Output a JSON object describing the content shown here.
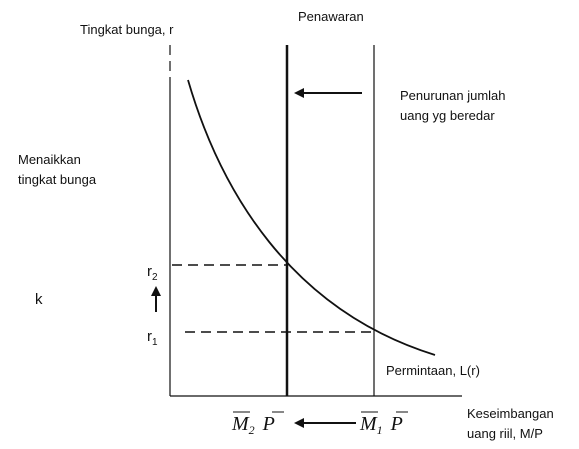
{
  "labels": {
    "y_axis": "Tingkat bunga, r",
    "supply": "Penawaran",
    "decrease": [
      "Penurunan jumlah",
      "uang yg beredar"
    ],
    "raise": [
      "Menaikkan",
      "tingkat bunga"
    ],
    "k": "k",
    "r2": {
      "base": "r",
      "sub": "2"
    },
    "r1": {
      "base": "r",
      "sub": "1"
    },
    "demand": "Permintaan, L(r)",
    "x_axis": [
      "Keseimbangan",
      "uang riil, M/P"
    ],
    "m2": {
      "m": "M",
      "sub": "2",
      "p": "P"
    },
    "m1": {
      "m": "M",
      "sub": "1",
      "p": "P"
    }
  }
}
